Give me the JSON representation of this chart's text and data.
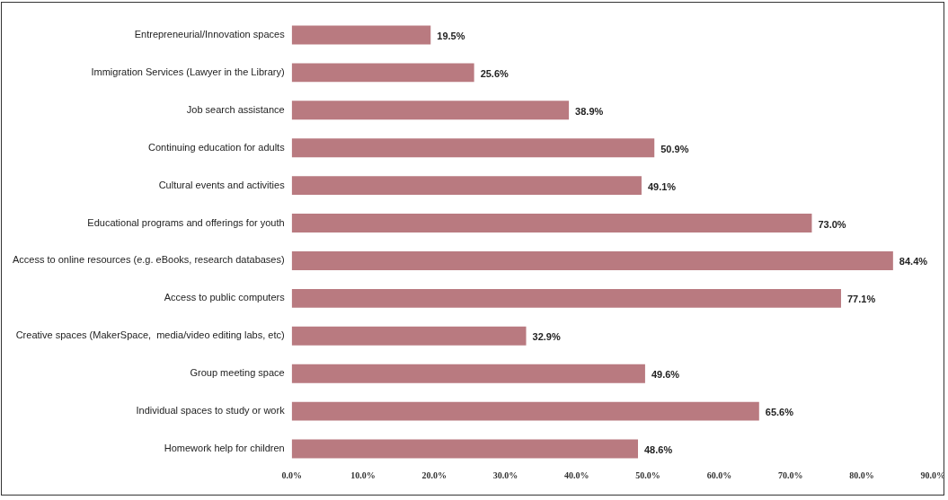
{
  "chart_data": {
    "type": "bar",
    "orientation": "horizontal",
    "categories": [
      "Entrepreneurial/Innovation spaces",
      "Immigration Services (Lawyer in the Library)",
      "Job search assistance",
      "Continuing education for adults",
      "Cultural events and activities",
      "Educational programs and offerings for youth",
      "Access to online resources (e.g. eBooks, research databases)",
      "Access to public computers",
      "Creative spaces (MakerSpace,  media/video editing labs, etc)",
      "Group meeting space",
      "Individual spaces to study or work",
      "Homework help for children"
    ],
    "values": [
      19.5,
      25.6,
      38.9,
      50.9,
      49.1,
      73.0,
      84.4,
      77.1,
      32.9,
      49.6,
      65.6,
      48.6
    ],
    "value_labels": [
      "19.5%",
      "25.6%",
      "38.9%",
      "50.9%",
      "49.1%",
      "73.0%",
      "84.4%",
      "77.1%",
      "32.9%",
      "49.6%",
      "65.6%",
      "48.6%"
    ],
    "color": "#b97a80",
    "xlim": [
      0,
      90
    ],
    "xticks": [
      {
        "value": 0,
        "label": "0.0%"
      },
      {
        "value": 10,
        "label": "10.0%"
      },
      {
        "value": 20,
        "label": "20.0%"
      },
      {
        "value": 30,
        "label": "30.0%"
      },
      {
        "value": 40,
        "label": "40.0%"
      },
      {
        "value": 50,
        "label": "50.0%"
      },
      {
        "value": 60,
        "label": "60.0%"
      },
      {
        "value": 70,
        "label": "70.0%"
      },
      {
        "value": 80,
        "label": "80.0%"
      },
      {
        "value": 90,
        "label": "90.0%"
      }
    ],
    "grid": false,
    "legend": false
  }
}
